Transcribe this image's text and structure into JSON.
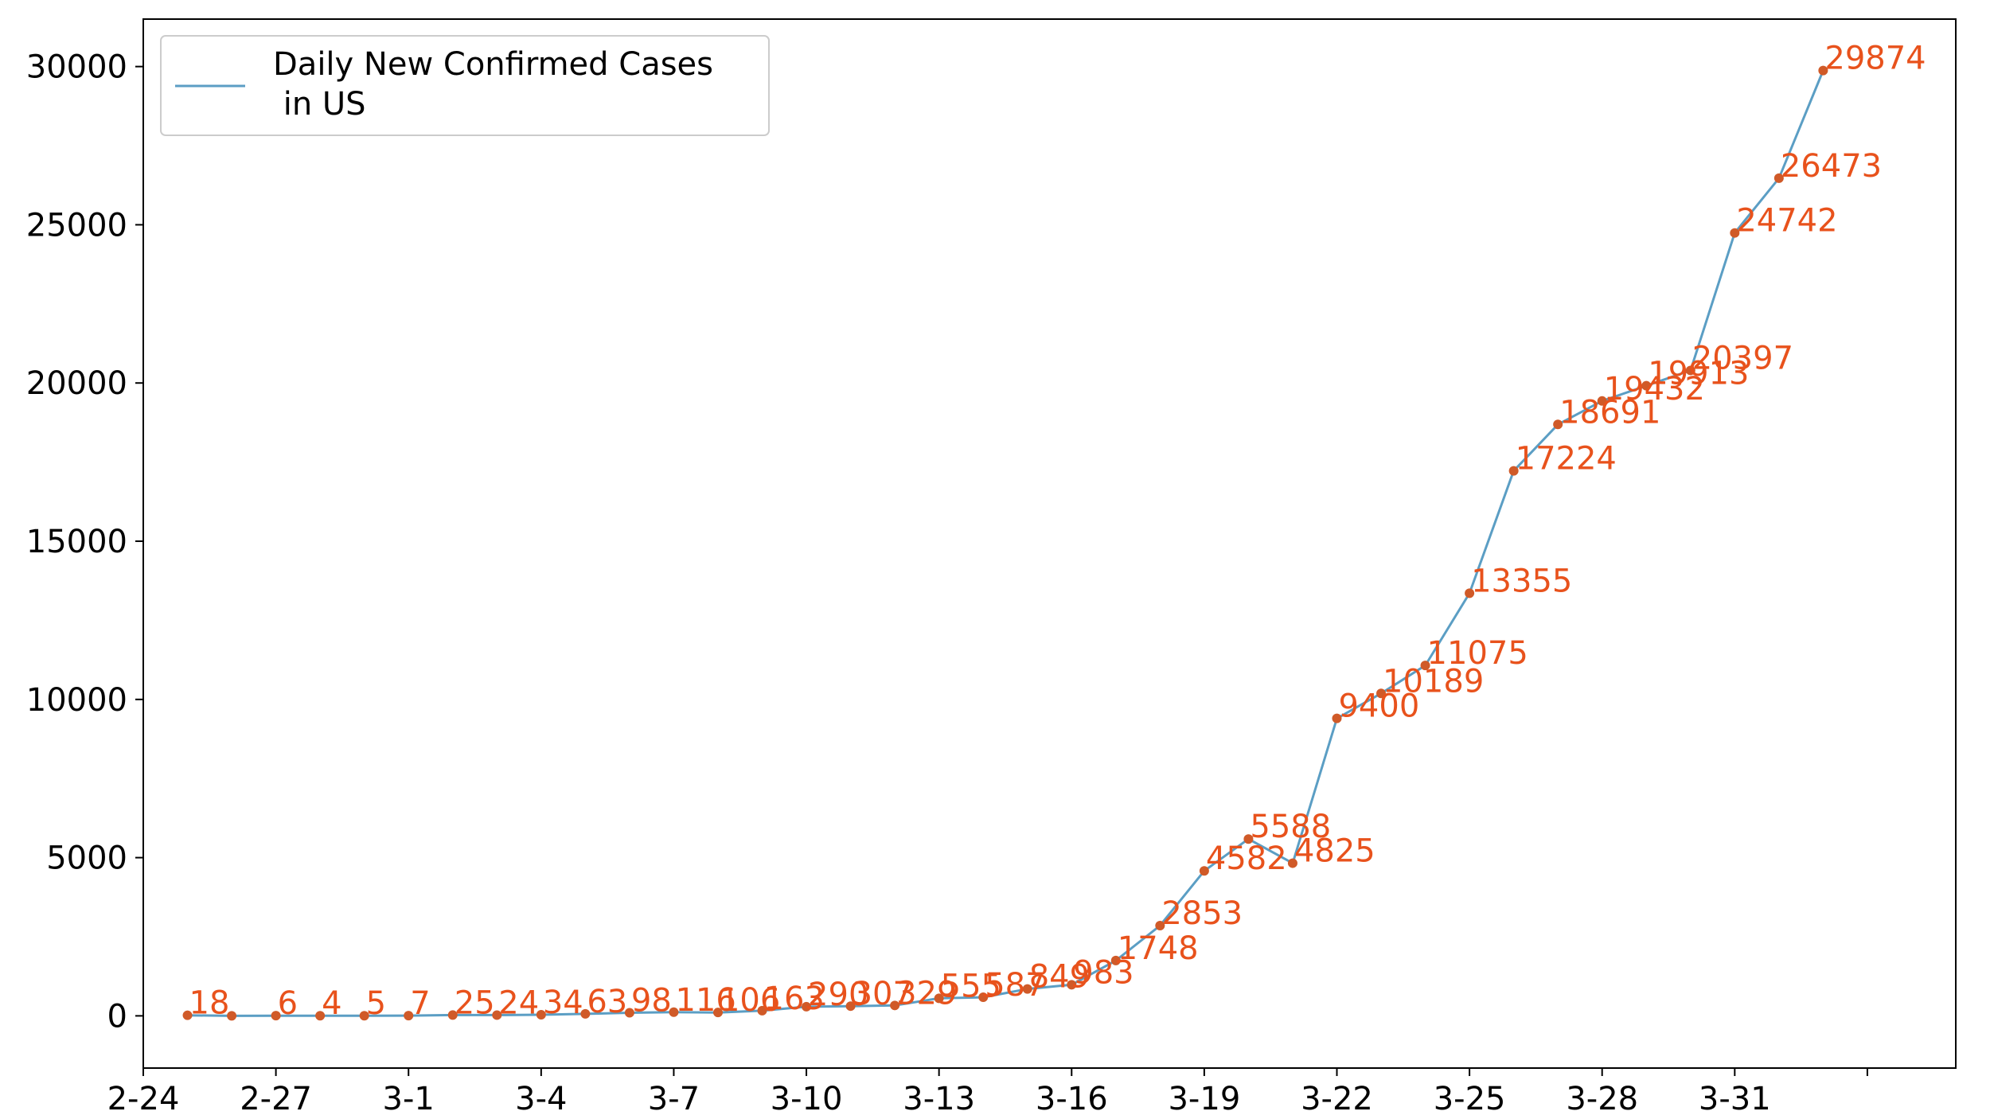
{
  "chart_data": {
    "type": "line",
    "title": "",
    "xlabel": "",
    "ylabel": "",
    "x": [
      "2-25",
      "2-26",
      "2-27",
      "2-28",
      "2-29",
      "3-1",
      "3-2",
      "3-3",
      "3-4",
      "3-5",
      "3-6",
      "3-7",
      "3-8",
      "3-9",
      "3-10",
      "3-11",
      "3-12",
      "3-13",
      "3-14",
      "3-15",
      "3-16",
      "3-17",
      "3-18",
      "3-19",
      "3-20",
      "3-21",
      "3-22",
      "3-23",
      "3-24",
      "3-25",
      "3-26",
      "3-27",
      "3-28",
      "3-29",
      "3-30",
      "3-31",
      "4-1",
      "4-2"
    ],
    "series": [
      {
        "name": "Daily New Confirmed Cases\n in US",
        "values": [
          18,
          0,
          6,
          4,
          5,
          7,
          25,
          24,
          34,
          63,
          98,
          116,
          106,
          163,
          290,
          307,
          329,
          555,
          587,
          849,
          983,
          1748,
          2853,
          4582,
          5588,
          4825,
          9400,
          10189,
          11075,
          13355,
          17224,
          18691,
          19432,
          19913,
          20397,
          24742,
          26473,
          29874
        ],
        "point_labels": [
          "18",
          "",
          "6",
          "4",
          "5",
          "7",
          "25",
          "24",
          "34",
          "63",
          "98",
          "116",
          "106",
          "163",
          "290",
          "307",
          "329",
          "555",
          "587",
          "849",
          "983",
          "1748",
          "2853",
          "4582",
          "5588",
          "4825",
          "9400",
          "10189",
          "11075",
          "13355",
          "17224",
          "18691",
          "19432",
          "19913",
          "20397",
          "24742",
          "26473",
          "29874"
        ]
      }
    ],
    "xticks": [
      "2-24",
      "2-27",
      "3-1",
      "3-4",
      "3-7",
      "3-10",
      "3-13",
      "3-16",
      "3-19",
      "3-22",
      "3-25",
      "3-28",
      "3-31",
      ""
    ],
    "yticks": [
      "0",
      "5000",
      "10000",
      "15000",
      "20000",
      "25000",
      "30000"
    ],
    "ytick_values": [
      0,
      5000,
      10000,
      15000,
      20000,
      25000,
      30000
    ],
    "ylim": [
      -1650,
      31500
    ],
    "x_index_range": [
      -1,
      40
    ],
    "grid": false,
    "legend_position": "top-left",
    "colors": {
      "line": "#5b9ec4",
      "marker": "#d05a28",
      "label": "#e8521c",
      "axis": "#000000"
    }
  }
}
